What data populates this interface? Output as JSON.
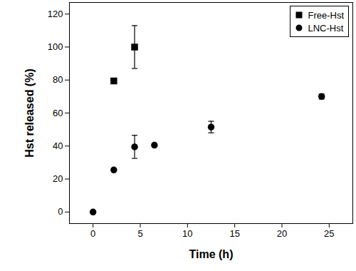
{
  "chart_data": {
    "type": "scatter",
    "xlabel": "Time (h)",
    "ylabel": "Hst released (%)",
    "xlim": [
      -2.5,
      27.5
    ],
    "xticks": [
      0,
      5,
      10,
      15,
      20,
      25
    ],
    "ylim": [
      -7,
      127
    ],
    "yticks": [
      0,
      20,
      40,
      60,
      80,
      100,
      120
    ],
    "grid": false,
    "legend": "upper right",
    "series": [
      {
        "name": "Free-Hst",
        "color": "#000000",
        "marker": "square",
        "x": [
          2.2,
          4.4
        ],
        "values": [
          79.5,
          100
        ],
        "errors": [
          1.5,
          13
        ]
      },
      {
        "name": "LNC-Hst",
        "color": "#000000",
        "marker": "circle",
        "x": [
          0,
          2.2,
          4.4,
          6.5,
          12.5,
          24.2
        ],
        "values": [
          0,
          25.5,
          39.5,
          40.5,
          51.5,
          70
        ],
        "errors": [
          0,
          0,
          7,
          0,
          3.5,
          1.5
        ]
      }
    ]
  }
}
